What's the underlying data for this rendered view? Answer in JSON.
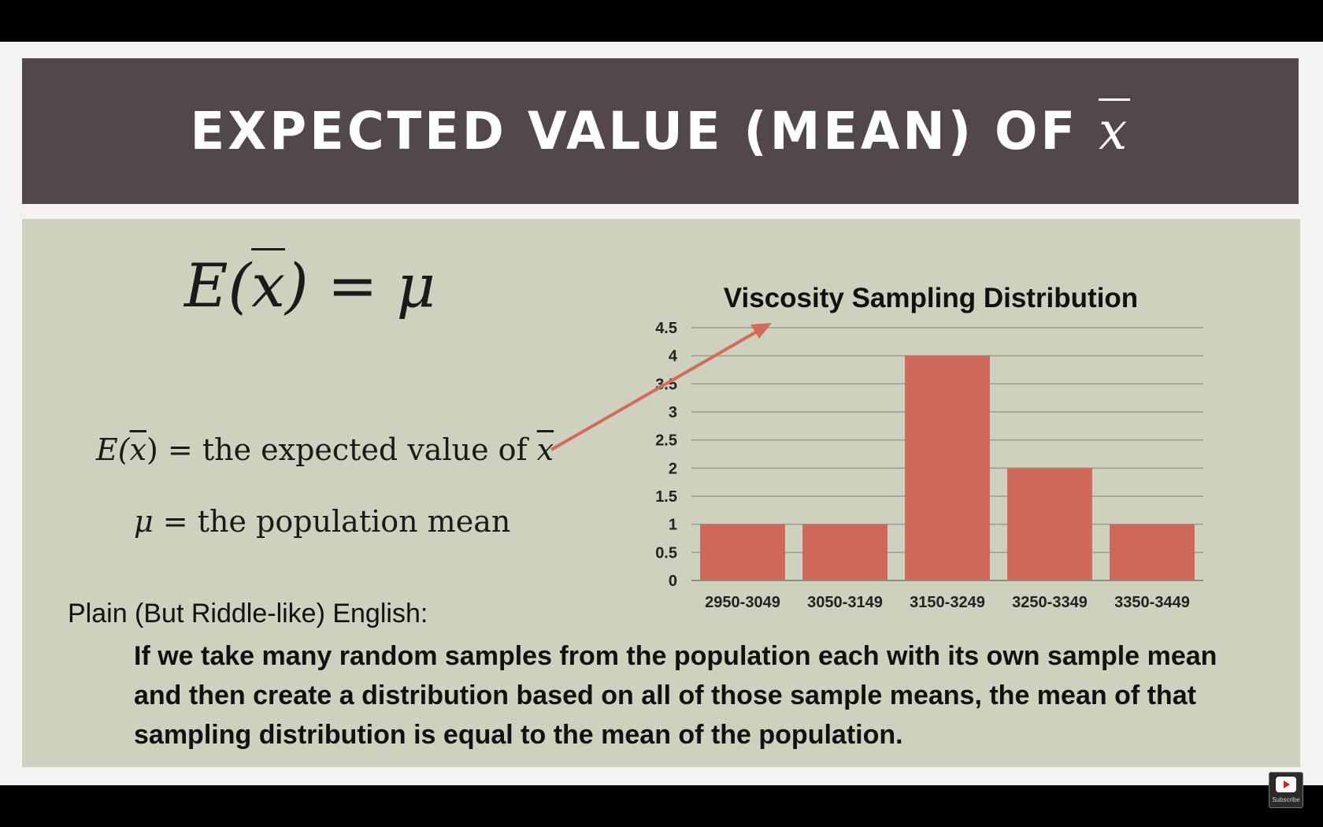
{
  "slide": {
    "title": "EXPECTED VALUE (MEAN) OF ",
    "title_symbol": "x",
    "formula": {
      "lhs_e": "E(",
      "lhs_x": "x",
      "lhs_close": ") = ",
      "rhs": "μ"
    },
    "definitions": {
      "expected_e": "E(",
      "expected_x": "x",
      "expected_close": ")",
      "expected_text": " = the expected value of ",
      "expected_tail_x": "x",
      "mu_symbol": "μ",
      "mu_text": " = the population mean"
    },
    "plain_heading": "Plain (But Riddle-like) English:",
    "plain_body": "If we take many random samples from the population each with its own sample mean and then create a distribution based on all of those sample means, the mean of that sampling distribution is equal to the mean of the population."
  },
  "chart_data": {
    "type": "bar",
    "title": "Viscosity Sampling Distribution",
    "categories": [
      "2950-3049",
      "3050-3149",
      "3150-3249",
      "3250-3349",
      "3350-3449"
    ],
    "values": [
      1,
      1,
      4,
      2,
      1
    ],
    "xlabel": "",
    "ylabel": "",
    "ylim": [
      0,
      4.5
    ],
    "yticks": [
      "0",
      "0.5",
      "1",
      "1.5",
      "2",
      "2.5",
      "3",
      "3.5",
      "4",
      "4.5"
    ],
    "grid": true,
    "bar_color": "#d0685a",
    "grid_color": "#9a9a8e"
  },
  "annotation": {
    "arrow_color": "#d36b5b"
  },
  "player": {
    "subscribe_label": "Subscribe",
    "subscribe_icon": "youtube-play-icon"
  }
}
